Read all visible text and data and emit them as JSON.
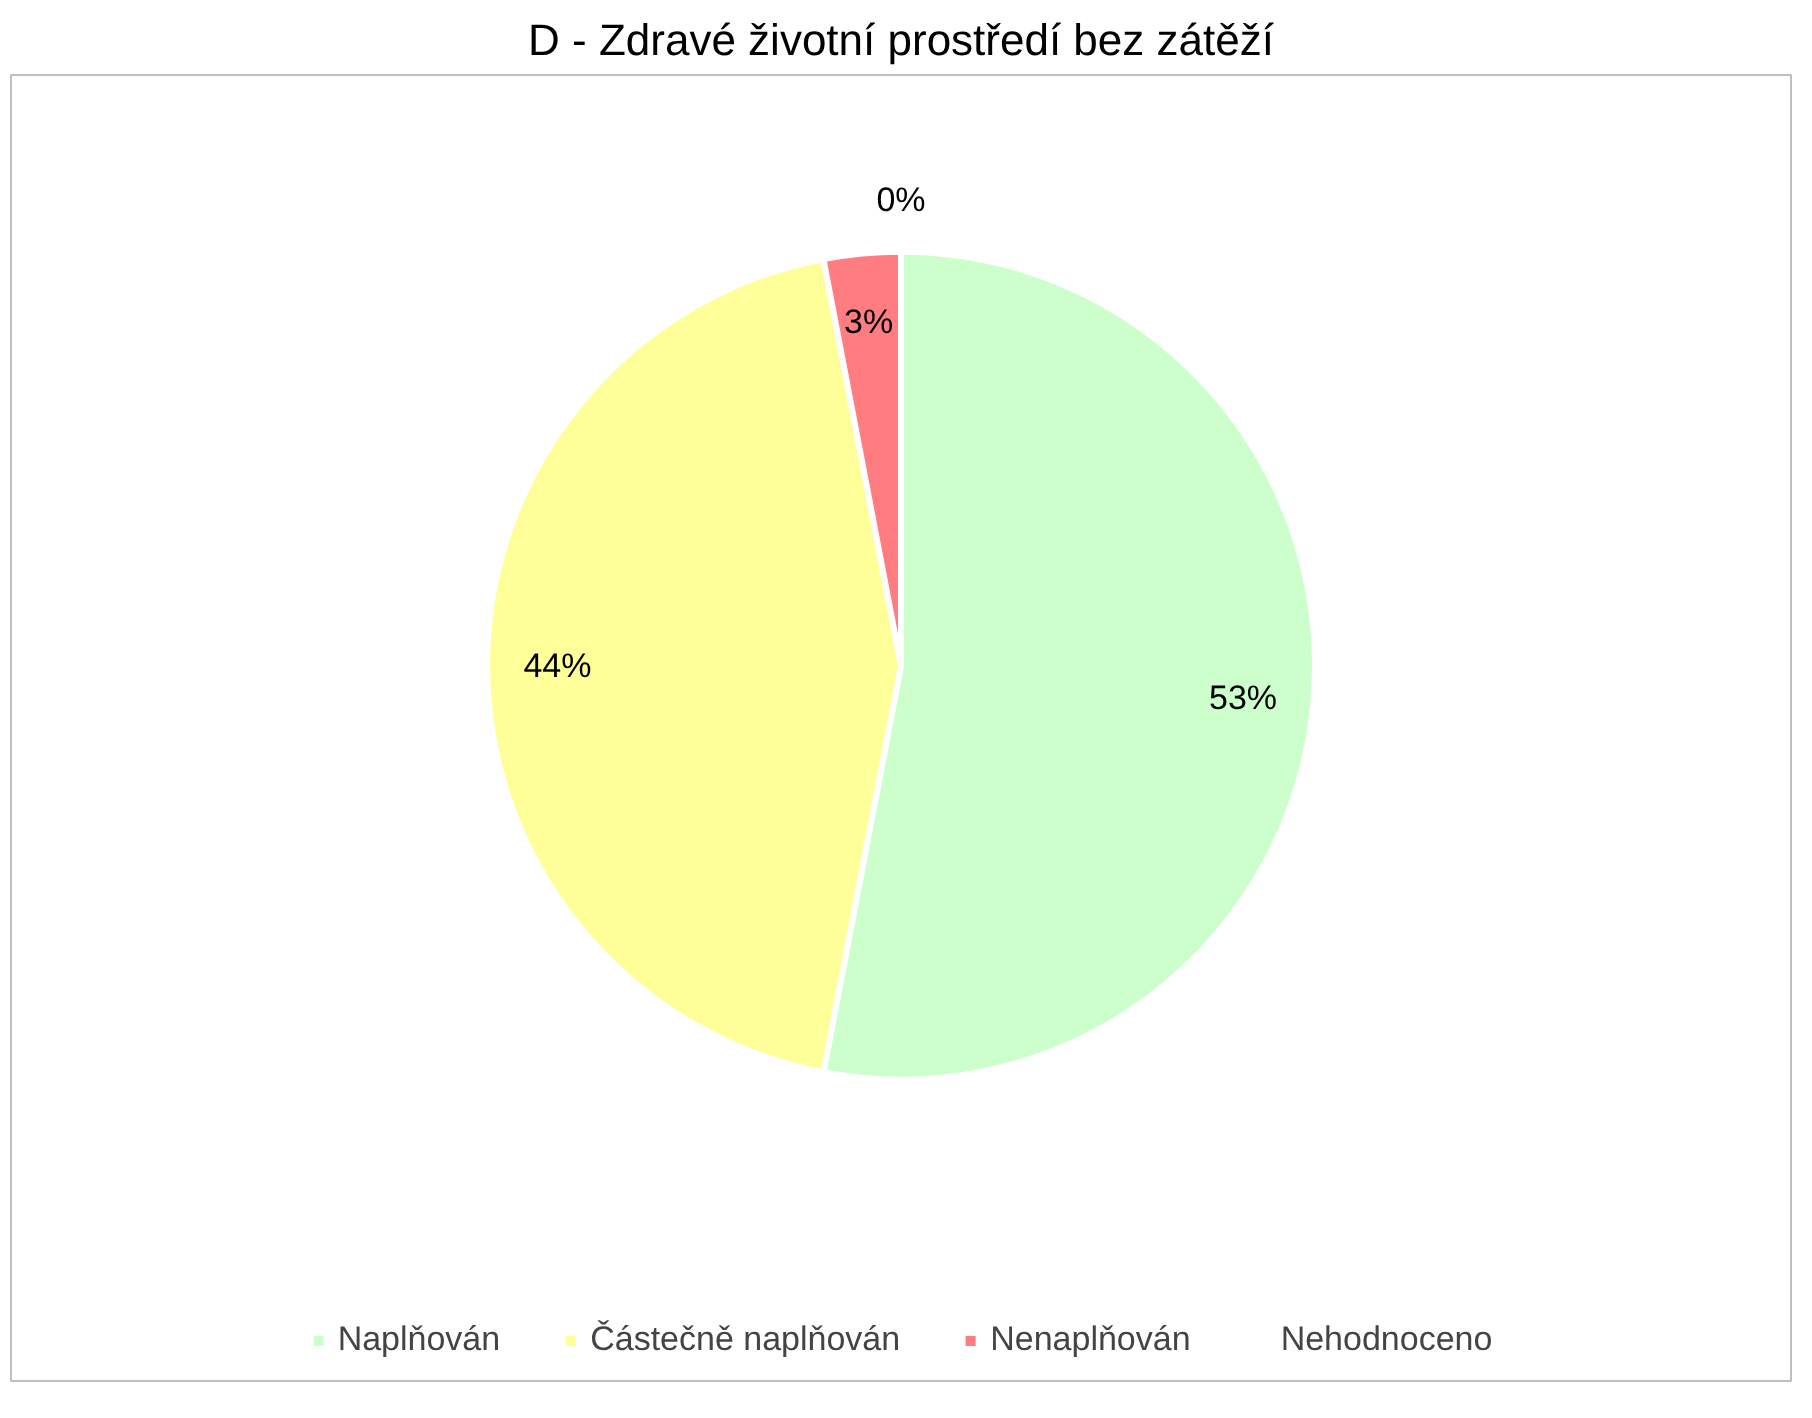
{
  "chart_data": {
    "type": "pie",
    "title": "D - Zdravé životní prostředí bez zátěží",
    "categories": [
      "Naplňován",
      "Částečně naplňován",
      "Nenaplňován",
      "Nehodnoceno"
    ],
    "values": [
      53,
      44,
      3,
      0
    ],
    "colors": [
      "#ccffcc",
      "#ffff99",
      "#ff7c80",
      "#cc99ff"
    ],
    "value_labels": [
      "53%",
      "44%",
      "3%",
      "0%"
    ],
    "legend": "bottom"
  }
}
